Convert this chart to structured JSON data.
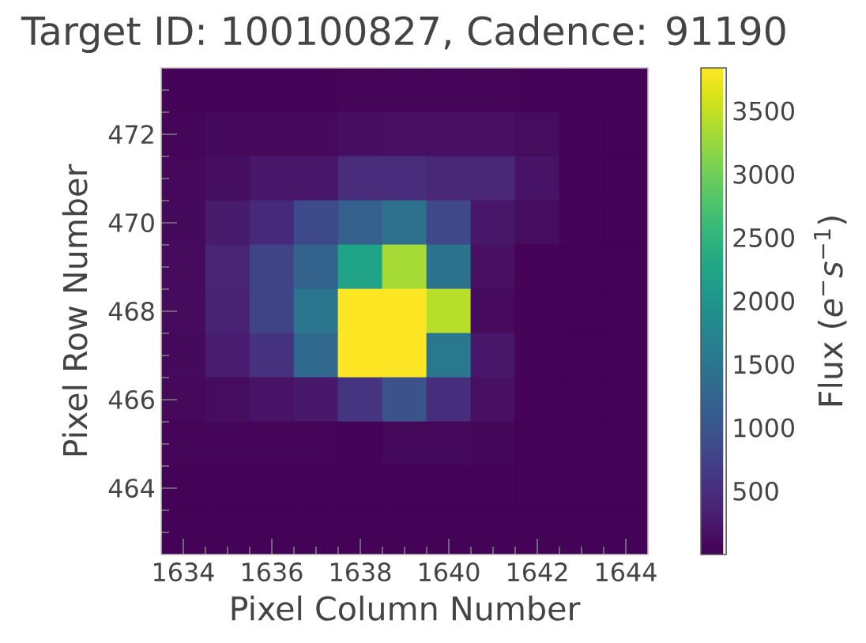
{
  "chart_data": {
    "type": "heatmap",
    "title": "Target ID: 100100827, Cadence: 91190",
    "xlabel": "Pixel Column Number",
    "ylabel": "Pixel Row Number",
    "clabel": "Flux (*e*$^{−}$*s*$^{−1}$)",
    "categories": [
      "1634",
      null,
      "1636",
      null,
      "1638",
      null,
      "1640",
      null,
      "1642",
      null,
      "1644"
    ],
    "y_categories": [
      null,
      "472",
      null,
      "470",
      null,
      "468",
      null,
      "466",
      null,
      "464",
      null
    ],
    "cells": [
      [
        30,
        30,
        30,
        30,
        40,
        50,
        50,
        50,
        30,
        20,
        20
      ],
      [
        50,
        90,
        90,
        90,
        130,
        150,
        150,
        150,
        110,
        30,
        20
      ],
      [
        70,
        130,
        230,
        230,
        480,
        480,
        420,
        420,
        190,
        30,
        20
      ],
      [
        90,
        280,
        440,
        850,
        1150,
        1420,
        830,
        230,
        110,
        30,
        20
      ],
      [
        100,
        380,
        770,
        1200,
        2220,
        3330,
        1450,
        150,
        30,
        20,
        20
      ],
      [
        100,
        360,
        770,
        1500,
        3840,
        3840,
        3430,
        100,
        30,
        20,
        20
      ],
      [
        90,
        290,
        560,
        1280,
        3840,
        3840,
        1530,
        230,
        30,
        20,
        20
      ],
      [
        70,
        120,
        190,
        240,
        580,
        960,
        500,
        150,
        30,
        20,
        20
      ],
      [
        50,
        50,
        50,
        50,
        30,
        80,
        80,
        60,
        20,
        20,
        20
      ],
      [
        20,
        20,
        20,
        20,
        20,
        20,
        20,
        20,
        20,
        20,
        20
      ],
      [
        20,
        20,
        20,
        20,
        20,
        20,
        20,
        20,
        20,
        20,
        20
      ]
    ],
    "clim": [
      0,
      3840
    ],
    "cticks": [
      500,
      1000,
      1500,
      2000,
      2500,
      3000,
      3500
    ]
  }
}
